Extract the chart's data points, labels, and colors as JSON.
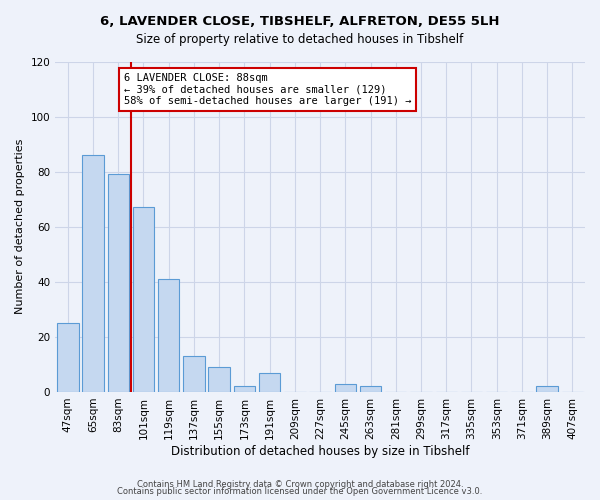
{
  "title": "6, LAVENDER CLOSE, TIBSHELF, ALFRETON, DE55 5LH",
  "subtitle": "Size of property relative to detached houses in Tibshelf",
  "xlabel": "Distribution of detached houses by size in Tibshelf",
  "ylabel": "Number of detached properties",
  "bar_values": [
    25,
    86,
    79,
    67,
    41,
    13,
    9,
    2,
    7,
    0,
    0,
    3,
    2,
    0,
    0,
    0,
    0,
    0,
    0,
    2,
    0
  ],
  "bar_labels": [
    "47sqm",
    "65sqm",
    "83sqm",
    "101sqm",
    "119sqm",
    "137sqm",
    "155sqm",
    "173sqm",
    "191sqm",
    "209sqm",
    "227sqm",
    "245sqm",
    "263sqm",
    "281sqm",
    "299sqm",
    "317sqm",
    "335sqm",
    "353sqm",
    "371sqm",
    "389sqm",
    "407sqm"
  ],
  "bar_color": "#c5d8f0",
  "bar_edge_color": "#5b9bd5",
  "ylim": [
    0,
    120
  ],
  "yticks": [
    0,
    20,
    40,
    60,
    80,
    100,
    120
  ],
  "vline_x": 2,
  "vline_color": "#cc0000",
  "annotation_title": "6 LAVENDER CLOSE: 88sqm",
  "annotation_line1": "← 39% of detached houses are smaller (129)",
  "annotation_line2": "58% of semi-detached houses are larger (191) →",
  "annotation_box_color": "#ffffff",
  "annotation_box_edge": "#cc0000",
  "footer1": "Contains HM Land Registry data © Crown copyright and database right 2024.",
  "footer2": "Contains public sector information licensed under the Open Government Licence v3.0.",
  "background_color": "#eef2fa",
  "grid_color": "#cdd5e8"
}
